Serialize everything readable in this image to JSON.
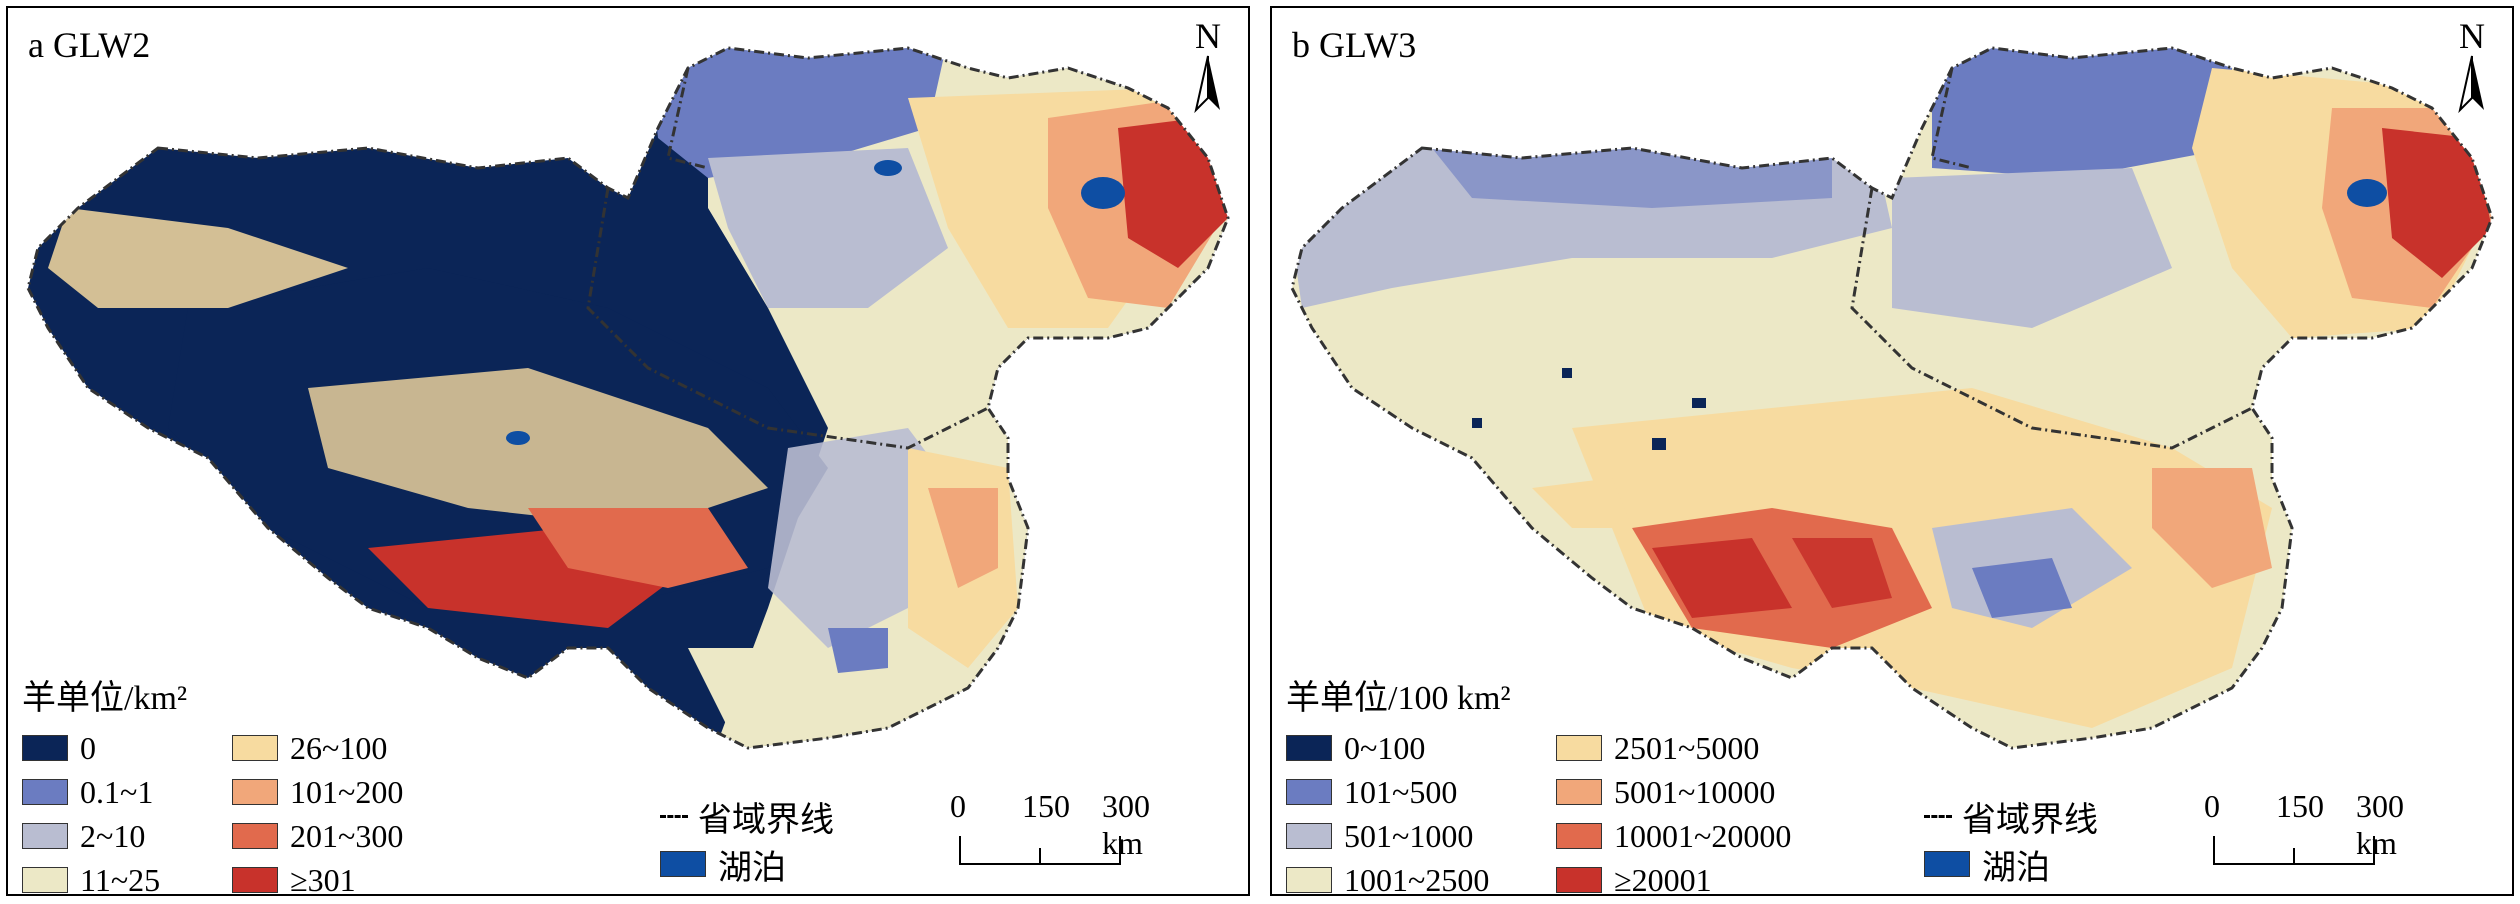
{
  "panels": [
    {
      "title": "a GLW2",
      "north_label": "N",
      "legend": {
        "title": "羊单位/km²",
        "items": [
          {
            "label": "0",
            "color": "#0b2557"
          },
          {
            "label": "0.1~1",
            "color": "#6b7cc1"
          },
          {
            "label": "2~10",
            "color": "#b9bdd1"
          },
          {
            "label": "11~25",
            "color": "#ece8c6"
          },
          {
            "label": "26~100",
            "color": "#f7dba0"
          },
          {
            "label": "101~200",
            "color": "#f1a77a"
          },
          {
            "label": "201~300",
            "color": "#e16a4d"
          },
          {
            "label": "≥301",
            "color": "#c8322b"
          }
        ]
      },
      "boundary_label": "省域界线",
      "lake_label": "湖泊",
      "scale": {
        "labels": [
          "0",
          "150",
          "300 km"
        ]
      }
    },
    {
      "title": "b GLW3",
      "north_label": "N",
      "legend": {
        "title": "羊单位/100 km²",
        "items": [
          {
            "label": "0~100",
            "color": "#0b2557"
          },
          {
            "label": "101~500",
            "color": "#6b7cc1"
          },
          {
            "label": "501~1000",
            "color": "#b9bdd1"
          },
          {
            "label": "1001~2500",
            "color": "#ece8c6"
          },
          {
            "label": "2501~5000",
            "color": "#f7dba0"
          },
          {
            "label": "5001~10000",
            "color": "#f1a77a"
          },
          {
            "label": "10001~20000",
            "color": "#e16a4d"
          },
          {
            "label": "≥20001",
            "color": "#c8322b"
          }
        ]
      },
      "boundary_label": "省域界线",
      "lake_label": "湖泊",
      "scale": {
        "labels": [
          "0",
          "150",
          "300 km"
        ]
      }
    }
  ],
  "colors": {
    "lake": "#0e4ea3",
    "boundary": "#333333"
  }
}
